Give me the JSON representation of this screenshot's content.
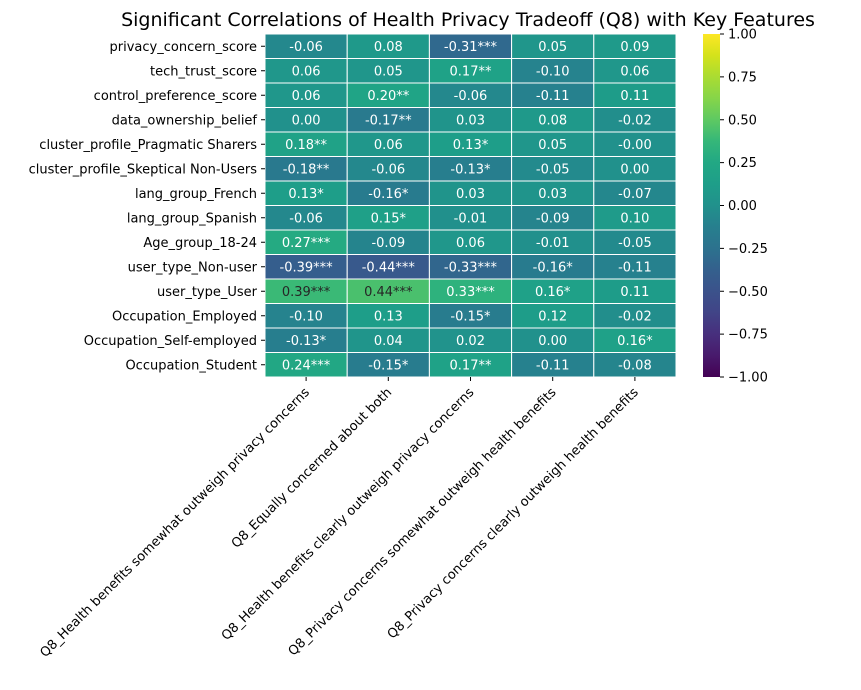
{
  "chart_data": {
    "type": "heatmap",
    "title": "Significant Correlations of Health Privacy Tradeoff (Q8) with Key Features",
    "colormap": "viridis",
    "vmin": -1.0,
    "vmax": 1.0,
    "colorbar_ticks": [
      "1.00",
      "0.75",
      "0.50",
      "0.25",
      "0.00",
      "−0.25",
      "−0.50",
      "−0.75",
      "−1.00"
    ],
    "colorbar_tick_values": [
      1.0,
      0.75,
      0.5,
      0.25,
      0.0,
      -0.25,
      -0.5,
      -0.75,
      -1.0
    ],
    "rows": [
      "privacy_concern_score",
      "tech_trust_score",
      "control_preference_score",
      "data_ownership_belief",
      "cluster_profile_Pragmatic Sharers",
      "cluster_profile_Skeptical Non-Users",
      "lang_group_French",
      "lang_group_Spanish",
      "Age_group_18-24",
      "user_type_Non-user",
      "user_type_User",
      "Occupation_Employed",
      "Occupation_Self-employed",
      "Occupation_Student"
    ],
    "columns": [
      "Q8_Health benefits somewhat outweigh privacy concerns",
      "Q8_Equally concerned about both",
      "Q8_Health benefits clearly outweigh privacy concerns",
      "Q8_Privacy concerns somewhat outweigh health benefits",
      "Q8_Privacy concerns clearly outweigh health benefits"
    ],
    "values": [
      [
        -0.06,
        0.08,
        -0.31,
        0.05,
        0.09
      ],
      [
        0.06,
        0.05,
        0.17,
        -0.1,
        0.06
      ],
      [
        0.06,
        0.2,
        -0.06,
        -0.11,
        0.11
      ],
      [
        0.0,
        -0.17,
        0.03,
        0.08,
        -0.02
      ],
      [
        0.18,
        0.06,
        0.13,
        0.05,
        -0.0
      ],
      [
        -0.18,
        -0.06,
        -0.13,
        -0.05,
        0.0
      ],
      [
        0.13,
        -0.16,
        0.03,
        0.03,
        -0.07
      ],
      [
        -0.06,
        0.15,
        -0.01,
        -0.09,
        0.1
      ],
      [
        0.27,
        -0.09,
        0.06,
        -0.01,
        -0.05
      ],
      [
        -0.39,
        -0.44,
        -0.33,
        -0.16,
        -0.11
      ],
      [
        0.39,
        0.44,
        0.33,
        0.16,
        0.11
      ],
      [
        -0.1,
        0.13,
        -0.15,
        0.12,
        -0.02
      ],
      [
        -0.13,
        0.04,
        0.02,
        0.0,
        0.16
      ],
      [
        0.24,
        -0.15,
        0.17,
        -0.11,
        -0.08
      ]
    ],
    "annotations": [
      [
        "-0.06",
        "0.08",
        "-0.31***",
        "0.05",
        "0.09"
      ],
      [
        "0.06",
        "0.05",
        "0.17**",
        "-0.10",
        "0.06"
      ],
      [
        "0.06",
        "0.20**",
        "-0.06",
        "-0.11",
        "0.11"
      ],
      [
        "0.00",
        "-0.17**",
        "0.03",
        "0.08",
        "-0.02"
      ],
      [
        "0.18**",
        "0.06",
        "0.13*",
        "0.05",
        "-0.00"
      ],
      [
        "-0.18**",
        "-0.06",
        "-0.13*",
        "-0.05",
        "0.00"
      ],
      [
        "0.13*",
        "-0.16*",
        "0.03",
        "0.03",
        "-0.07"
      ],
      [
        "-0.06",
        "0.15*",
        "-0.01",
        "-0.09",
        "0.10"
      ],
      [
        "0.27***",
        "-0.09",
        "0.06",
        "-0.01",
        "-0.05"
      ],
      [
        "-0.39***",
        "-0.44***",
        "-0.33***",
        "-0.16*",
        "-0.11"
      ],
      [
        "0.39***",
        "0.44***",
        "0.33***",
        "0.16*",
        "0.11"
      ],
      [
        "-0.10",
        "0.13",
        "-0.15*",
        "0.12",
        "-0.02"
      ],
      [
        "-0.13*",
        "0.04",
        "0.02",
        "0.00",
        "0.16*"
      ],
      [
        "0.24***",
        "-0.15*",
        "0.17**",
        "-0.11",
        "-0.08"
      ]
    ]
  }
}
